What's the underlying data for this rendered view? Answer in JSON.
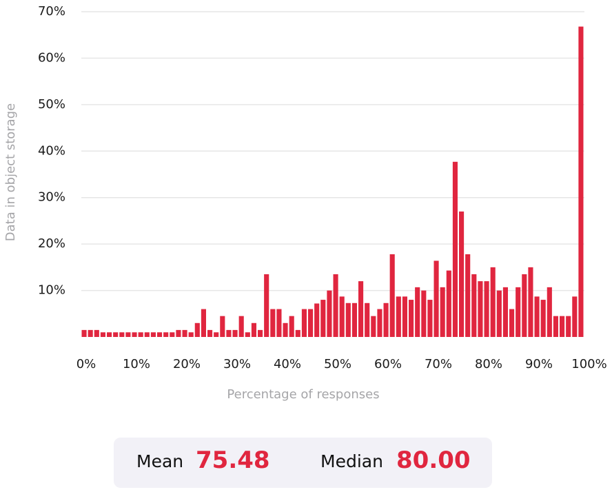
{
  "chart_data": {
    "type": "histogram",
    "ylabel": "Data in object storage",
    "xlabel": "Percentage of responses",
    "bins": [
      0,
      1.25,
      2.5,
      3.75,
      5,
      6.25,
      7.5,
      8.75,
      10,
      11.25,
      12.5,
      13.75,
      15,
      16.25,
      17.5,
      18.75,
      20,
      21.25,
      22.5,
      23.75,
      25,
      26.25,
      27.5,
      28.75,
      30,
      31.25,
      32.5,
      33.75,
      35,
      36.25,
      37.5,
      38.75,
      40,
      41.25,
      42.5,
      43.75,
      45,
      46.25,
      47.5,
      48.75,
      50,
      51.25,
      52.5,
      53.75,
      55,
      56.25,
      57.5,
      58.75,
      60,
      61.25,
      62.5,
      63.75,
      65,
      66.25,
      67.5,
      68.75,
      70,
      71.25,
      72.5,
      73.75,
      75,
      76.25,
      77.5,
      78.75,
      80,
      81.25,
      82.5,
      83.75,
      85,
      86.25,
      87.5,
      88.75,
      90,
      91.25,
      92.5,
      93.75,
      95,
      96.25,
      97.5,
      98.75,
      100
    ],
    "values": [
      1.5,
      1.5,
      1.5,
      1,
      1,
      1,
      1,
      1,
      1,
      1,
      1,
      1,
      1,
      1,
      1,
      1.5,
      1.5,
      1,
      3,
      6,
      1.5,
      1,
      4.5,
      1.5,
      1.5,
      4.5,
      1,
      3,
      1.5,
      13.5,
      6,
      6,
      3,
      4.5,
      1.5,
      6,
      6,
      7.2,
      8,
      10,
      13.5,
      8.7,
      7.3,
      7.3,
      12,
      7.3,
      4.5,
      6,
      7.3,
      17.8,
      8.7,
      8.7,
      8,
      10.7,
      10,
      8,
      16.4,
      10.7,
      14.3,
      37.7,
      27,
      17.8,
      13.5,
      12,
      12,
      15,
      10,
      10.7,
      6,
      10.7,
      13.5,
      15,
      8.7,
      8,
      10.7,
      4.5,
      4.5,
      4.5,
      8.7,
      66.8
    ],
    "color": "#e0263f",
    "xlim": [
      0,
      100
    ],
    "ylim": [
      0,
      70
    ],
    "xticks": [
      {
        "value": 0,
        "label": "0%"
      },
      {
        "value": 10,
        "label": "10%"
      },
      {
        "value": 20,
        "label": "20%"
      },
      {
        "value": 30,
        "label": "30%"
      },
      {
        "value": 40,
        "label": "40%"
      },
      {
        "value": 50,
        "label": "50%"
      },
      {
        "value": 60,
        "label": "60%"
      },
      {
        "value": 70,
        "label": "70%"
      },
      {
        "value": 80,
        "label": "80%"
      },
      {
        "value": 90,
        "label": "90%"
      },
      {
        "value": 100,
        "label": "100%"
      }
    ],
    "yticks": [
      {
        "value": 10,
        "label": "10%"
      },
      {
        "value": 20,
        "label": "20%"
      },
      {
        "value": 30,
        "label": "30%"
      },
      {
        "value": 40,
        "label": "40%"
      },
      {
        "value": 50,
        "label": "50%"
      },
      {
        "value": 60,
        "label": "60%"
      },
      {
        "value": 70,
        "label": "70%"
      }
    ],
    "grid": true
  },
  "summary": {
    "mean_label": "Mean",
    "mean": "75.48",
    "median_label": "Median",
    "median": "80.00"
  }
}
